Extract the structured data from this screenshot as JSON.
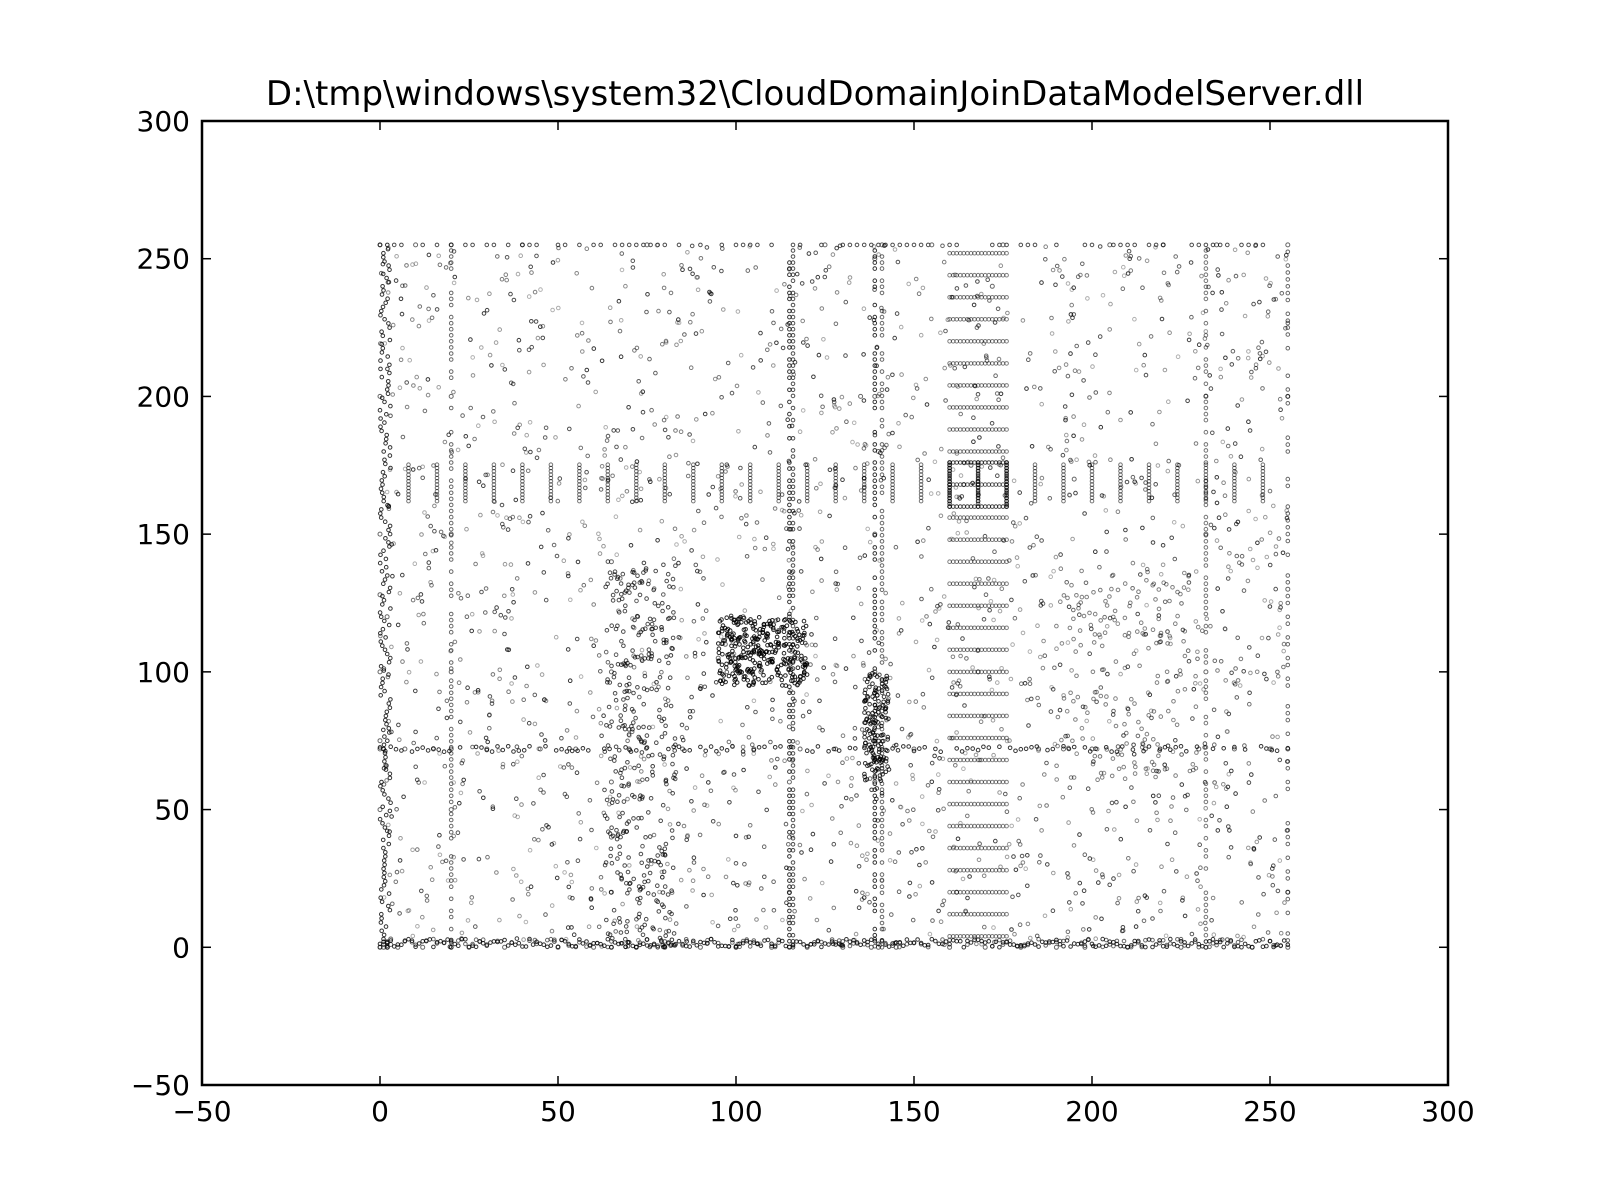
{
  "chart_data": {
    "type": "scatter",
    "title": "D:\\tmp\\windows\\system32\\CloudDomainJoinDataModelServer.dll",
    "xlabel": "",
    "ylabel": "",
    "xlim": [
      -50,
      300
    ],
    "ylim": [
      -50,
      300
    ],
    "x_ticks": [
      -50,
      0,
      50,
      100,
      150,
      200,
      250,
      300
    ],
    "y_ticks": [
      -50,
      0,
      50,
      100,
      150,
      200,
      250,
      300
    ],
    "x_tick_labels": [
      "−50",
      "0",
      "50",
      "100",
      "150",
      "200",
      "250",
      "300"
    ],
    "y_tick_labels": [
      "−50",
      "0",
      "50",
      "100",
      "150",
      "200",
      "250",
      "300"
    ],
    "grid": false,
    "legend": "none",
    "colors": {
      "marker": "#000000",
      "axes": "#000000",
      "background": "#ffffff"
    },
    "data_range": {
      "x": [
        0,
        255
      ],
      "y": [
        0,
        255
      ]
    },
    "series": [
      {
        "x": [
          0,
          1,
          2,
          3,
          0,
          0,
          0,
          0,
          0,
          0,
          0,
          0,
          1,
          1,
          2,
          2,
          3,
          5,
          7,
          10,
          12,
          15,
          20,
          20,
          20,
          20,
          20,
          20,
          20,
          25,
          30,
          35,
          40,
          45,
          50,
          55,
          60,
          65,
          65,
          65,
          65,
          65,
          65,
          70,
          72,
          75,
          80,
          85,
          90,
          95,
          97,
          100,
          102,
          105,
          107,
          110,
          112,
          115,
          115,
          115,
          115,
          115,
          115,
          118,
          120,
          125,
          128,
          130,
          135,
          138,
          139,
          139,
          139,
          139,
          139,
          140,
          140,
          140,
          141,
          145,
          150,
          155,
          160,
          162,
          164,
          166,
          168,
          170,
          172,
          175,
          180,
          185,
          190,
          192,
          195,
          198,
          200,
          205,
          210,
          215,
          220,
          225,
          230,
          232,
          232,
          232,
          232,
          235,
          240,
          245,
          250,
          255,
          255,
          255,
          255,
          255,
          255
        ],
        "y": [
          0,
          1,
          2,
          3,
          50,
          100,
          128,
          150,
          200,
          255,
          72,
          75,
          0,
          72,
          0,
          120,
          1,
          0,
          72,
          255,
          0,
          72,
          0,
          50,
          100,
          150,
          200,
          255,
          72,
          0,
          72,
          0,
          255,
          72,
          0,
          72,
          0,
          0,
          20,
          40,
          60,
          100,
          140,
          72,
          0,
          255,
          0,
          72,
          0,
          105,
          110,
          0,
          120,
          72,
          100,
          0,
          115,
          0,
          20,
          40,
          60,
          80,
          120,
          72,
          0,
          255,
          72,
          0,
          200,
          0,
          60,
          100,
          150,
          200,
          250,
          0,
          80,
          180,
          255,
          0,
          72,
          255,
          0,
          20,
          168,
          175,
          100,
          0,
          240,
          255,
          0,
          72,
          0,
          72,
          170,
          0,
          72,
          255,
          0,
          72,
          255,
          0,
          72,
          0,
          100,
          150,
          200,
          255,
          72,
          0,
          72,
          0,
          20,
          72,
          130,
          200,
          255
        ]
      }
    ]
  }
}
